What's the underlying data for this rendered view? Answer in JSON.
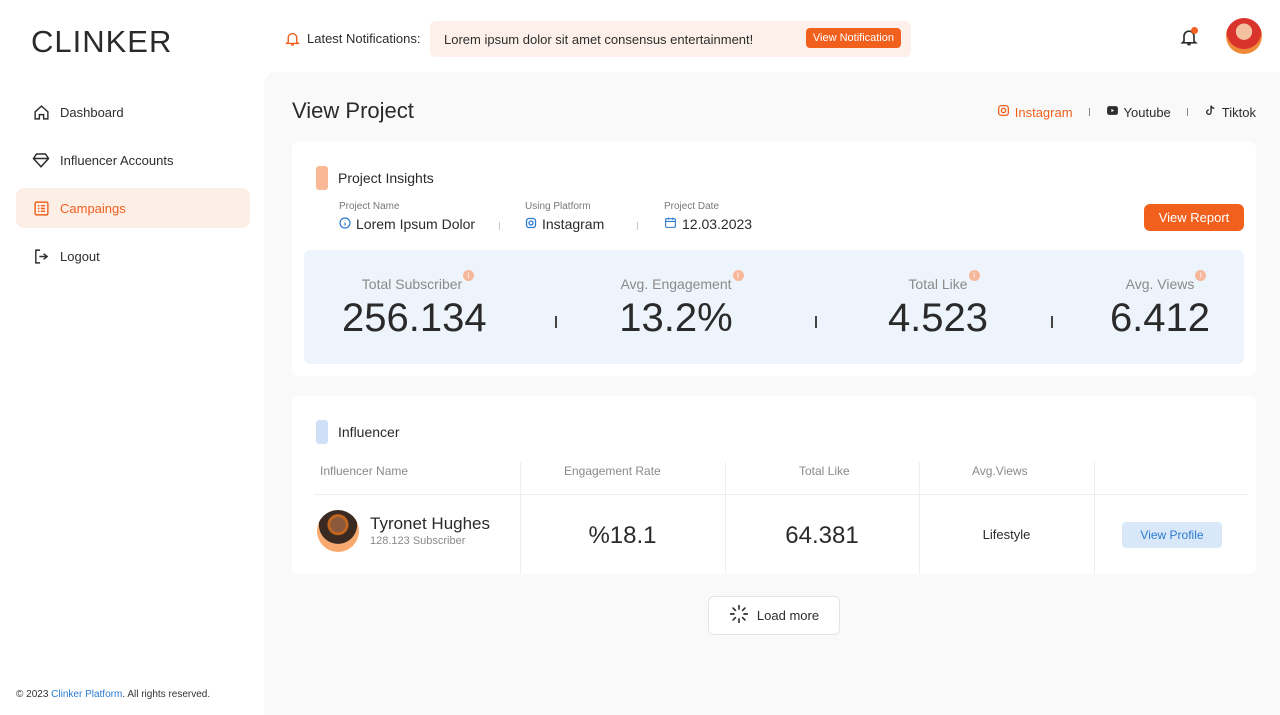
{
  "app": {
    "logo": "CLINKER"
  },
  "sidebar": {
    "items": [
      {
        "label": "Dashboard",
        "icon": "home-icon"
      },
      {
        "label": "Influencer Accounts",
        "icon": "diamond-icon"
      },
      {
        "label": "Campaings",
        "icon": "list-icon",
        "active": true
      },
      {
        "label": "Logout",
        "icon": "logout-icon"
      }
    ],
    "footer": {
      "prefix": "© 2023 ",
      "brand": "Clinker Platform",
      "suffix": ". All rights reserved."
    }
  },
  "header": {
    "notifications_label": "Latest Notifications:",
    "notification_text": "Lorem ipsum dolor sit amet consensus entertainment!",
    "notification_button": "View Notification"
  },
  "page": {
    "title": "View Project",
    "platforms": [
      {
        "label": "Instagram",
        "icon": "instagram-icon",
        "active": true
      },
      {
        "label": "Youtube",
        "icon": "youtube-icon"
      },
      {
        "label": "Tiktok",
        "icon": "tiktok-icon"
      }
    ]
  },
  "insights": {
    "title": "Project Insights",
    "project_name_label": "Project Name",
    "project_name": "Lorem Ipsum Dolor",
    "platform_label": "Using Platform",
    "platform": "Instagram",
    "date_label": "Project Date",
    "date": "12.03.2023",
    "report_button": "View Report",
    "stats": [
      {
        "label": "Total Subscriber",
        "value": "256.134"
      },
      {
        "label": "Avg. Engagement",
        "value": "13.2%"
      },
      {
        "label": "Total Like",
        "value": "4.523"
      },
      {
        "label": "Avg. Views",
        "value": "6.412"
      }
    ]
  },
  "influencer": {
    "title": "Influencer",
    "columns": [
      "Influencer Name",
      "Engagement Rate",
      "Total Like",
      "Avg.Views"
    ],
    "rows": [
      {
        "name": "Tyronet Hughes",
        "subscribers": "128.123 Subscriber",
        "engagement": "%18.1",
        "likes": "64.381",
        "views": "Lifestyle",
        "action": "View Profile"
      }
    ],
    "load_more": "Load more"
  },
  "colors": {
    "accent": "#f2601e",
    "link": "#2b7bd1",
    "stats_bg": "#eef4fb"
  }
}
